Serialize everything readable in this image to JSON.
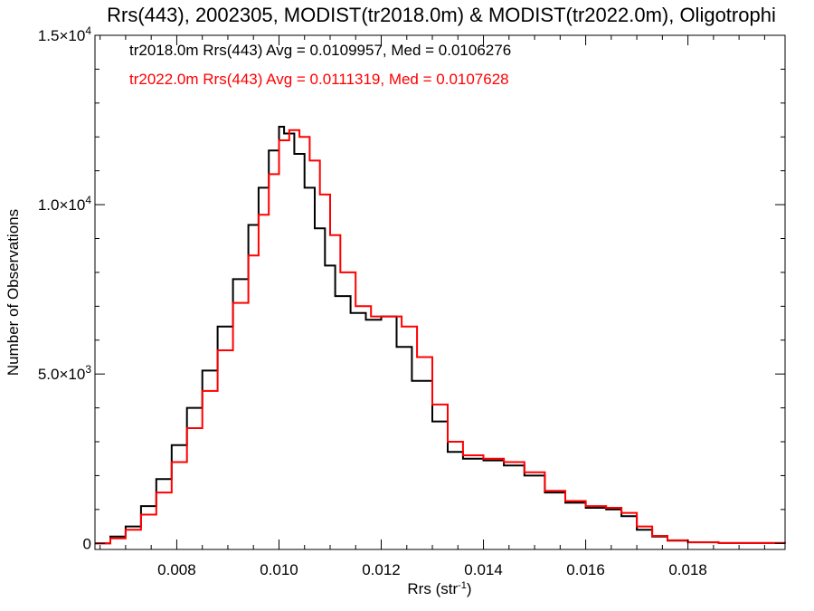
{
  "chart_data": {
    "type": "line",
    "title": "Rrs(443), 2002305, MODIST(tr2018.0m) & MODIST(tr2022.0m), Oligotrophi",
    "xlabel": {
      "base": "Rrs (str",
      "sup": "-1",
      "end": ")"
    },
    "ylabel": "Number of Observations",
    "xlim": [
      0.0064,
      0.0199
    ],
    "ylim": [
      -180,
      15000
    ],
    "x_ticks": [
      {
        "value": 0.008,
        "label": "0.008"
      },
      {
        "value": 0.01,
        "label": "0.010"
      },
      {
        "value": 0.012,
        "label": "0.012"
      },
      {
        "value": 0.014,
        "label": "0.014"
      },
      {
        "value": 0.016,
        "label": "0.016"
      },
      {
        "value": 0.018,
        "label": "0.018"
      }
    ],
    "y_ticks": [
      {
        "value": 0,
        "mant": "0",
        "exp": ""
      },
      {
        "value": 5000,
        "mant": "5.0×10",
        "exp": "3"
      },
      {
        "value": 10000,
        "mant": "1.0×10",
        "exp": "4"
      },
      {
        "value": 15000,
        "mant": "1.5×10",
        "exp": "4"
      }
    ],
    "annotations": [
      {
        "text": "tr2018.0m Rrs(443) Avg = 0.0109957, Med = 0.0106276",
        "color": "#000000"
      },
      {
        "text": "tr2022.0m Rrs(443) Avg = 0.0111319, Med = 0.0107628",
        "color": "#ff0000"
      }
    ],
    "series": [
      {
        "color": "#000000",
        "x": [
          0.0064,
          0.0067,
          0.007,
          0.0073,
          0.0076,
          0.0079,
          0.0082,
          0.0085,
          0.0088,
          0.0091,
          0.0094,
          0.0096,
          0.0098,
          0.01,
          0.0101,
          0.0103,
          0.0105,
          0.0107,
          0.0109,
          0.0111,
          0.0114,
          0.0117,
          0.012,
          0.0123,
          0.0126,
          0.013,
          0.0133,
          0.0136,
          0.014,
          0.0144,
          0.0148,
          0.0152,
          0.0156,
          0.016,
          0.0164,
          0.0167,
          0.017,
          0.0173,
          0.0176,
          0.018,
          0.0186,
          0.0199
        ],
        "y": [
          0,
          200,
          500,
          1100,
          1900,
          2900,
          4000,
          5100,
          6400,
          7800,
          9400,
          10500,
          11600,
          12300,
          12100,
          11500,
          10500,
          9300,
          8200,
          7300,
          6800,
          6600,
          6700,
          5800,
          4800,
          3600,
          2700,
          2500,
          2450,
          2300,
          2000,
          1500,
          1200,
          1050,
          1000,
          800,
          400,
          200,
          80,
          30,
          10,
          0
        ]
      },
      {
        "color": "#ff0000",
        "x": [
          0.0064,
          0.0067,
          0.007,
          0.0073,
          0.0076,
          0.0079,
          0.0082,
          0.0085,
          0.0088,
          0.0091,
          0.0094,
          0.0096,
          0.0098,
          0.01,
          0.0102,
          0.0104,
          0.0106,
          0.0108,
          0.011,
          0.0112,
          0.0115,
          0.0118,
          0.0121,
          0.0124,
          0.0127,
          0.013,
          0.0133,
          0.0136,
          0.014,
          0.0144,
          0.0148,
          0.0152,
          0.0156,
          0.016,
          0.0164,
          0.0167,
          0.017,
          0.0173,
          0.0176,
          0.018,
          0.0186,
          0.0199
        ],
        "y": [
          0,
          150,
          400,
          850,
          1500,
          2400,
          3400,
          4500,
          5700,
          7100,
          8500,
          9700,
          10900,
          11900,
          12200,
          12000,
          11300,
          10300,
          9100,
          8000,
          7000,
          6700,
          6700,
          6400,
          5500,
          4100,
          3000,
          2600,
          2500,
          2400,
          2100,
          1550,
          1250,
          1100,
          1050,
          900,
          500,
          220,
          90,
          35,
          10,
          0
        ]
      }
    ],
    "grid": false,
    "legend": "none"
  }
}
